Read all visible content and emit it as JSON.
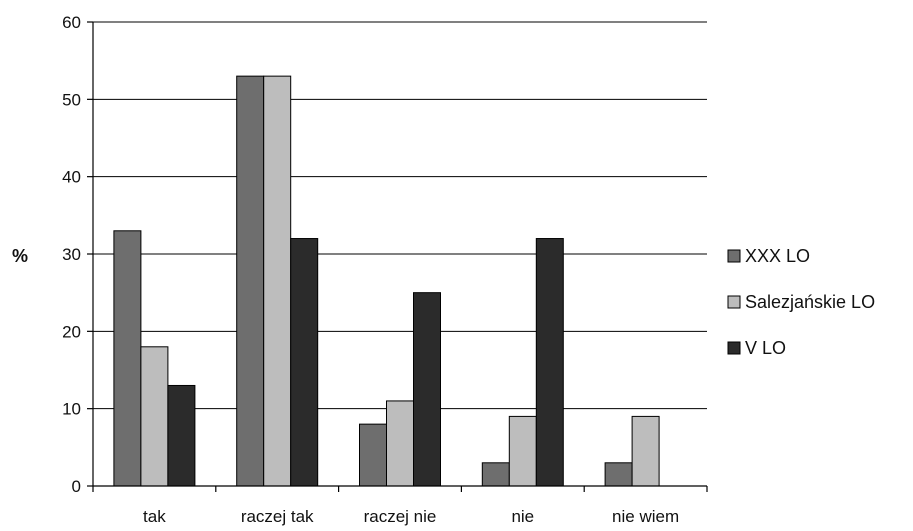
{
  "chart_data": {
    "type": "bar",
    "ylabel": "%",
    "ylim": [
      0,
      60
    ],
    "yticks": [
      0,
      10,
      20,
      30,
      40,
      50,
      60
    ],
    "grid": true,
    "legend_position": "right",
    "categories": [
      "tak",
      "raczej tak",
      "raczej nie",
      "nie",
      "nie wiem"
    ],
    "series": [
      {
        "name": "XXX LO",
        "color": "#6e6e6e",
        "values": [
          33,
          53,
          8,
          3,
          3
        ]
      },
      {
        "name": "Salezjańskie LO",
        "color": "#bdbdbd",
        "values": [
          18,
          53,
          11,
          9,
          9
        ]
      },
      {
        "name": "V LO",
        "color": "#2b2b2b",
        "values": [
          13,
          32,
          25,
          32,
          0
        ]
      }
    ]
  }
}
